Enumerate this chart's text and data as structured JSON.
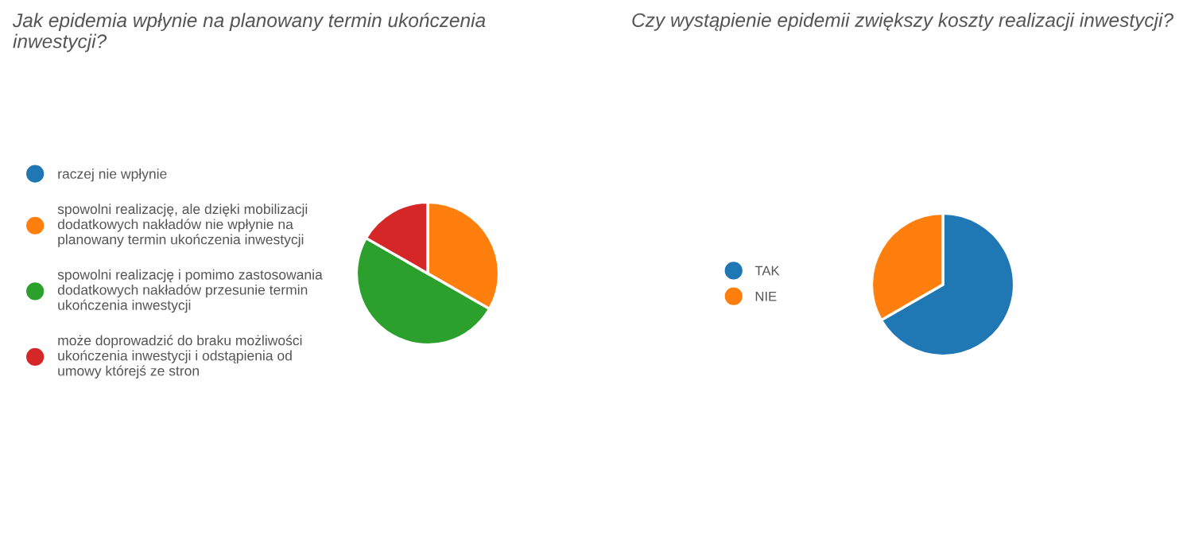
{
  "chart_data": [
    {
      "type": "pie",
      "title": "Jak epidemia wpłynie na planowany termin ukończenia\ninwestycji?",
      "categories": [
        "raczej nie wpłynie",
        "spowolni realizację, ale dzięki mobilizacji\ndodatkowych nakładów nie wpłynie na\nplanowany termin ukończenia inwestycji",
        "spowolni realizację i pomimo zastosowania\ndodatkowych nakładów przesunie termin\nukończenia inwestycji",
        "może doprowadzić do braku możliwości\nukończenia inwestycji i odstąpienia od\numowy którejś ze stron"
      ],
      "values": [
        0,
        33.3,
        50,
        16.7
      ],
      "colors": [
        "#1f77b4",
        "#ff7f0e",
        "#2ca02c",
        "#d62728"
      ],
      "legend": "left"
    },
    {
      "type": "pie",
      "title": "Czy wystąpienie epidemii zwiększy koszty realizacji inwestycji?",
      "categories": [
        "TAK",
        "NIE"
      ],
      "values": [
        66.7,
        33.3
      ],
      "colors": [
        "#1f77b4",
        "#ff7f0e"
      ],
      "legend": "left"
    }
  ]
}
